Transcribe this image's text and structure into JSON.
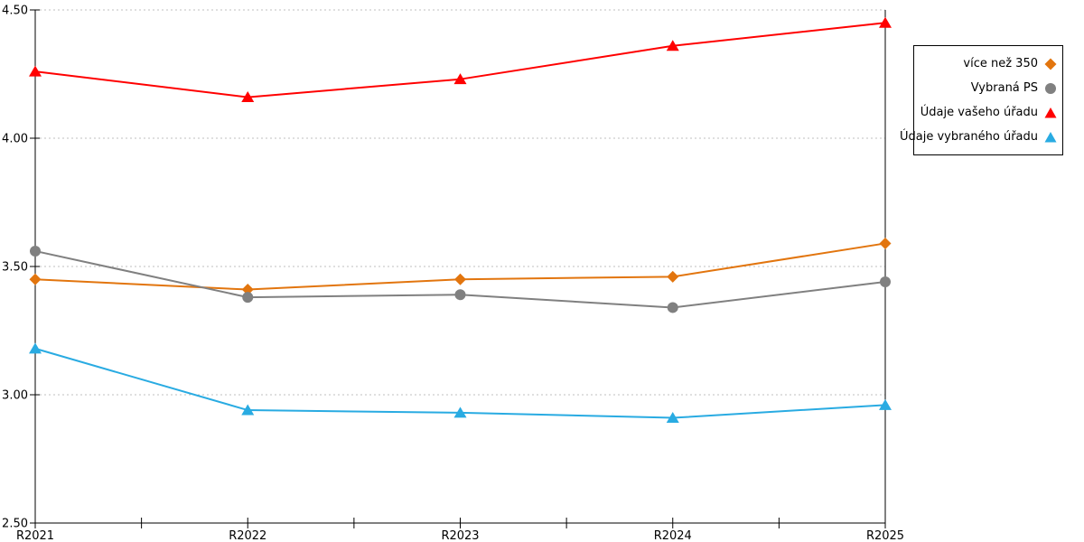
{
  "chart_data": {
    "type": "line",
    "title": "",
    "xlabel": "",
    "ylabel": "",
    "categories": [
      "R2021",
      "R2022",
      "R2023",
      "R2024",
      "R2025"
    ],
    "ylim": [
      2.5,
      4.5
    ],
    "y_tick_step": 0.5,
    "y_tick_labels": [
      "4.50",
      "4.00",
      "3.50",
      "3.00",
      "2.50"
    ],
    "grid": "horizontal dashed gridlines at each 0.50 step",
    "legend_position": "right outside, boxed",
    "series": [
      {
        "name": "více než 350",
        "marker": "diamond",
        "color": "#E2750E",
        "values": [
          3.45,
          3.41,
          3.45,
          3.46,
          3.59
        ]
      },
      {
        "name": "Vybraná PS",
        "marker": "circle",
        "color": "#808080",
        "values": [
          3.56,
          3.38,
          3.39,
          3.34,
          3.44
        ]
      },
      {
        "name": "Údaje vašeho úřadu",
        "marker": "triangle",
        "color": "#FF0000",
        "values": [
          4.26,
          4.16,
          4.23,
          4.36,
          4.45
        ]
      },
      {
        "name": "Údaje vybraného úřadu",
        "marker": "triangle",
        "color": "#29ABE2",
        "values": [
          3.18,
          2.94,
          2.93,
          2.91,
          2.96
        ]
      }
    ]
  },
  "style": {
    "axis_color": "#000000",
    "gridline_color": "#BFBFBF",
    "background_color": "#FFFFFF"
  }
}
